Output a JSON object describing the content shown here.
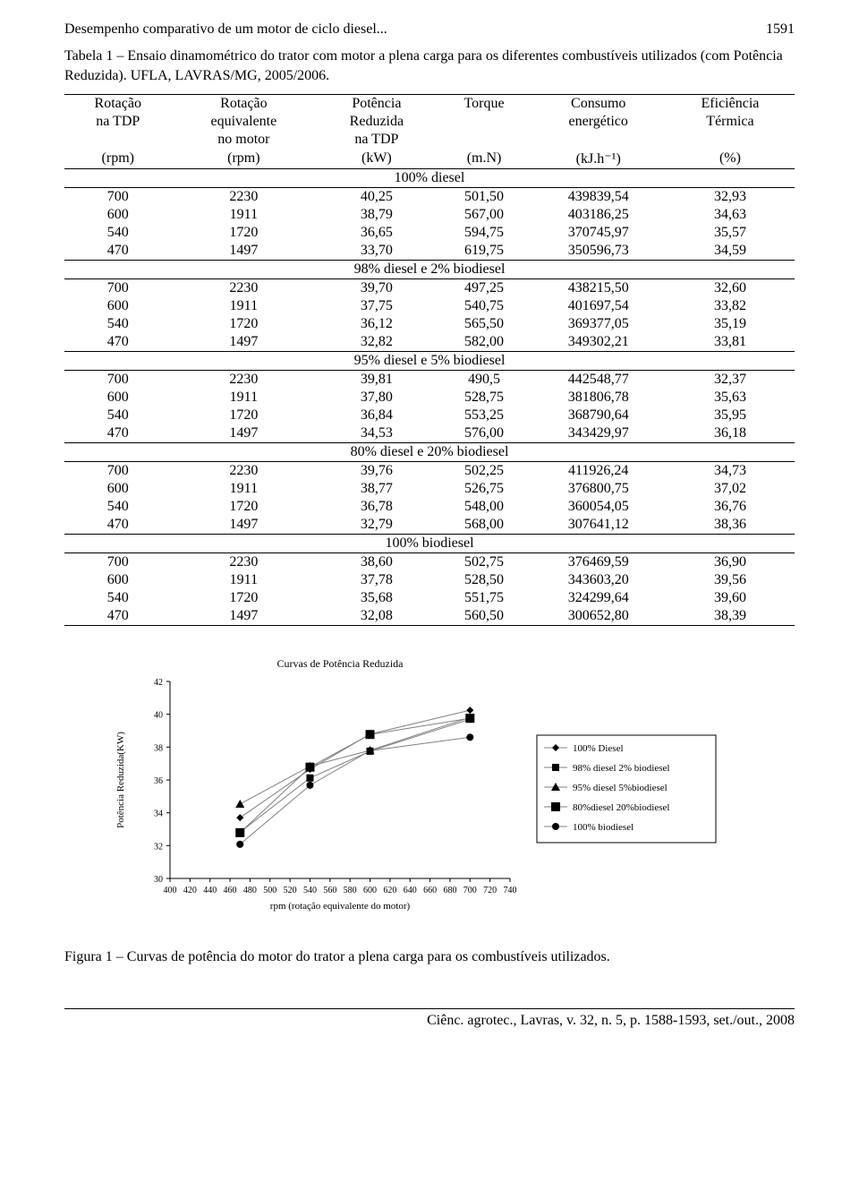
{
  "header": {
    "title": "Desempenho comparativo de um motor de ciclo diesel...",
    "page": "1591"
  },
  "table": {
    "caption": "Tabela 1 – Ensaio dinamométrico do trator com motor a plena carga para os diferentes combustíveis utilizados (com Potência Reduzida). UFLA, LAVRAS/MG, 2005/2006.",
    "head1": [
      "Rotação na TDP",
      "Rotação equivalente no motor",
      "Potência Reduzida na TDP",
      "Torque",
      "Consumo energético",
      "Eficiência Térmica"
    ],
    "head2": [
      "(rpm)",
      "(rpm)",
      "(kW)",
      "(m.N)",
      "(kJ.h⁻¹)",
      "(%)"
    ],
    "sections": [
      {
        "label": "100% diesel",
        "rows": [
          [
            "700",
            "2230",
            "40,25",
            "501,50",
            "439839,54",
            "32,93"
          ],
          [
            "600",
            "1911",
            "38,79",
            "567,00",
            "403186,25",
            "34,63"
          ],
          [
            "540",
            "1720",
            "36,65",
            "594,75",
            "370745,97",
            "35,57"
          ],
          [
            "470",
            "1497",
            "33,70",
            "619,75",
            "350596,73",
            "34,59"
          ]
        ]
      },
      {
        "label": "98% diesel e 2% biodiesel",
        "rows": [
          [
            "700",
            "2230",
            "39,70",
            "497,25",
            "438215,50",
            "32,60"
          ],
          [
            "600",
            "1911",
            "37,75",
            "540,75",
            "401697,54",
            "33,82"
          ],
          [
            "540",
            "1720",
            "36,12",
            "565,50",
            "369377,05",
            "35,19"
          ],
          [
            "470",
            "1497",
            "32,82",
            "582,00",
            "349302,21",
            "33,81"
          ]
        ]
      },
      {
        "label": "95% diesel e 5% biodiesel",
        "rows": [
          [
            "700",
            "2230",
            "39,81",
            "490,5",
            "442548,77",
            "32,37"
          ],
          [
            "600",
            "1911",
            "37,80",
            "528,75",
            "381806,78",
            "35,63"
          ],
          [
            "540",
            "1720",
            "36,84",
            "553,25",
            "368790,64",
            "35,95"
          ],
          [
            "470",
            "1497",
            "34,53",
            "576,00",
            "343429,97",
            "36,18"
          ]
        ]
      },
      {
        "label": "80% diesel e 20% biodiesel",
        "rows": [
          [
            "700",
            "2230",
            "39,76",
            "502,25",
            "411926,24",
            "34,73"
          ],
          [
            "600",
            "1911",
            "38,77",
            "526,75",
            "376800,75",
            "37,02"
          ],
          [
            "540",
            "1720",
            "36,78",
            "548,00",
            "360054,05",
            "36,76"
          ],
          [
            "470",
            "1497",
            "32,79",
            "568,00",
            "307641,12",
            "38,36"
          ]
        ]
      },
      {
        "label": "100% biodiesel",
        "rows": [
          [
            "700",
            "2230",
            "38,60",
            "502,75",
            "376469,59",
            "36,90"
          ],
          [
            "600",
            "1911",
            "37,78",
            "528,50",
            "343603,20",
            "39,56"
          ],
          [
            "540",
            "1720",
            "35,68",
            "551,75",
            "324299,64",
            "39,60"
          ],
          [
            "470",
            "1497",
            "32,08",
            "560,50",
            "300652,80",
            "38,39"
          ]
        ]
      }
    ]
  },
  "chart": {
    "type": "line",
    "title": "Curvas de Potência Reduzida",
    "xlabel": "rpm (rotação equivalente do motor)",
    "ylabel": "Potência Reduzida(KW)",
    "xlim": [
      400,
      740
    ],
    "ylim": [
      30,
      42
    ],
    "xtick_step": 20,
    "ytick_step": 2,
    "title_fontsize": 12,
    "label_fontsize": 11,
    "tick_fontsize": 10,
    "background_color": "#ffffff",
    "axis_color": "#000000",
    "line_color": "#808080",
    "line_width": 1,
    "marker_colors": {
      "diamond": "#000",
      "square": "#000",
      "triangle": "#000",
      "big-square": "#000",
      "circle": "#000"
    },
    "series": [
      {
        "name": "100% Diesel",
        "marker": "diamond",
        "x": [
          470,
          540,
          600,
          700
        ],
        "y": [
          33.7,
          36.65,
          38.79,
          40.25
        ]
      },
      {
        "name": "98% diesel 2% biodiesel",
        "marker": "square",
        "x": [
          470,
          540,
          600,
          700
        ],
        "y": [
          32.82,
          36.12,
          37.75,
          39.7
        ]
      },
      {
        "name": "95% diesel 5%biodiesel",
        "marker": "triangle",
        "x": [
          470,
          540,
          600,
          700
        ],
        "y": [
          34.53,
          36.84,
          37.8,
          39.81
        ]
      },
      {
        "name": "80%diesel 20%biodiesel",
        "marker": "big-square",
        "x": [
          470,
          540,
          600,
          700
        ],
        "y": [
          32.79,
          36.78,
          38.77,
          39.76
        ]
      },
      {
        "name": "100% biodiesel",
        "marker": "circle",
        "x": [
          470,
          540,
          600,
          700
        ],
        "y": [
          32.08,
          35.68,
          37.78,
          38.6
        ]
      }
    ],
    "legend_fontsize": 11
  },
  "figure_caption": "Figura 1 – Curvas de potência do motor do trator a plena carga para os combustíveis utilizados.",
  "footer": "Ciênc. agrotec., Lavras, v. 32, n. 5, p. 1588-1593, set./out., 2008"
}
